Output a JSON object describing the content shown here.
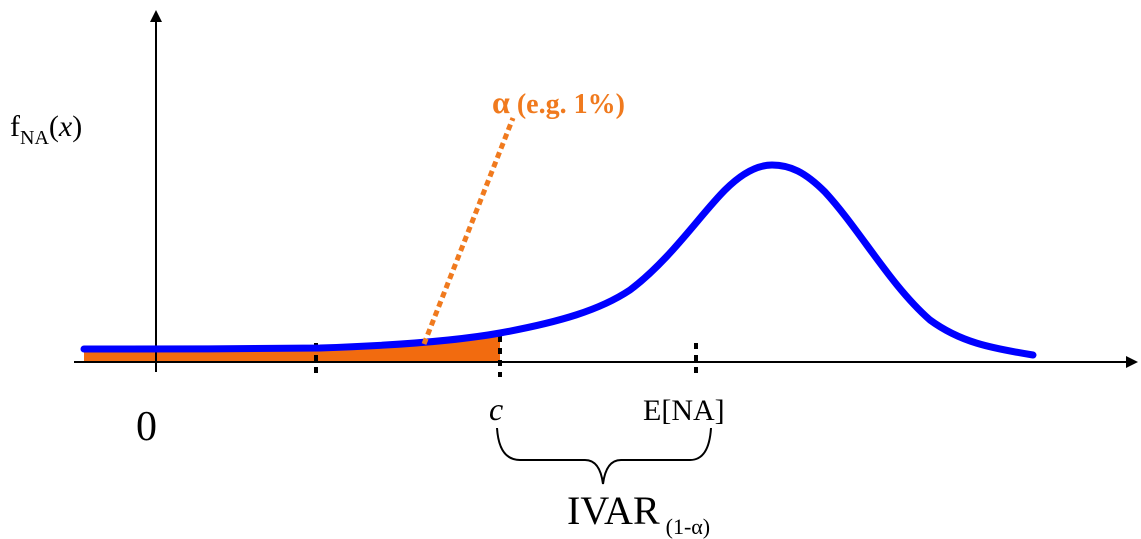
{
  "y_label": {
    "main": "f",
    "sub": "NA",
    "paren_open": "(",
    "var": "x",
    "paren_close": ")"
  },
  "alpha_label": {
    "symbol": "α",
    "text": " (e.g. 1%)"
  },
  "x_labels": {
    "zero": "0",
    "c": "c",
    "mean": "E[NA]"
  },
  "ivar_label": {
    "main": "IVAR",
    "sub": "(1-α)"
  },
  "colors": {
    "curve": "#0000ff",
    "tail": "#f26b0f",
    "alpha": "#f07a1e",
    "axis": "#000000"
  }
}
